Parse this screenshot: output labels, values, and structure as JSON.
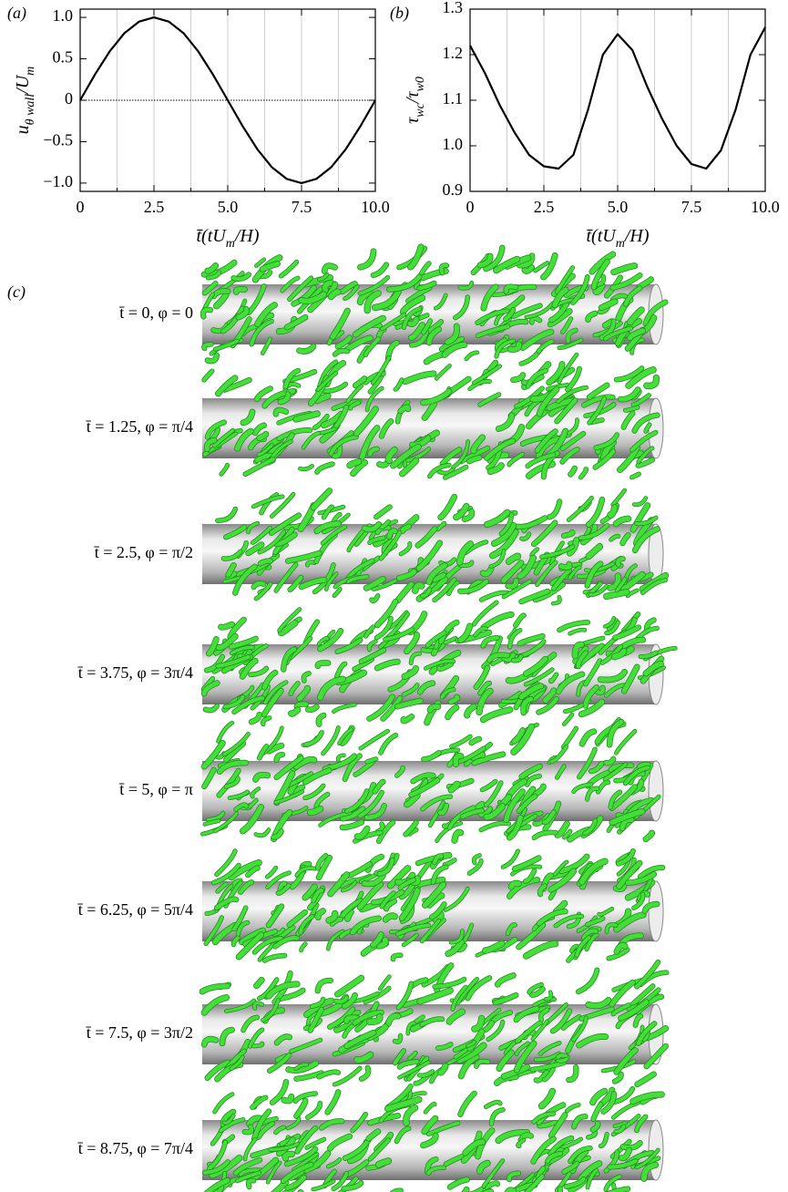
{
  "chart_data": [
    {
      "type": "line",
      "panel_label": "(a)",
      "x": [
        0,
        0.5,
        1,
        1.5,
        2,
        2.5,
        3,
        3.5,
        4,
        4.5,
        5,
        5.5,
        6,
        6.5,
        7,
        7.5,
        8,
        8.5,
        9,
        9.5,
        10
      ],
      "values": [
        0,
        0.31,
        0.59,
        0.81,
        0.95,
        1,
        0.95,
        0.81,
        0.59,
        0.31,
        0,
        -0.31,
        -0.59,
        -0.81,
        -0.95,
        -1,
        -0.95,
        -0.81,
        -0.59,
        -0.31,
        0
      ],
      "color": "#000000",
      "xlim": [
        0,
        10
      ],
      "ylim": [
        -1.1,
        1.1
      ],
      "xticks": [
        0,
        2.5,
        {
          "value": 5,
          "label": "5.0"
        },
        7.5,
        {
          "value": 10,
          "label": "10.0"
        }
      ],
      "xminorticks": [
        1.25,
        3.75,
        6.25,
        8.75
      ],
      "yticks": [
        {
          "value": -1,
          "label": "−1.0"
        },
        {
          "value": -0.5,
          "label": "−0.5"
        },
        0,
        0.5,
        {
          "value": 1,
          "label": "1.0"
        }
      ],
      "grid": "x",
      "zero_line": true,
      "x_label": [
        {
          "text": "t̄(tU"
        },
        {
          "text": "m",
          "sub": true
        },
        {
          "text": "/H)"
        }
      ],
      "y_label": [
        {
          "text": "u"
        },
        {
          "text": "θ wall",
          "sub": true
        },
        {
          "text": "/U"
        },
        {
          "text": "m",
          "sub": true
        }
      ]
    },
    {
      "type": "line",
      "panel_label": "(b)",
      "x": [
        0,
        0.5,
        1,
        1.5,
        2,
        2.5,
        3,
        3.5,
        4,
        4.5,
        5,
        5.5,
        6,
        6.5,
        7,
        7.5,
        8,
        8.5,
        9,
        9.5,
        10
      ],
      "values": [
        1.22,
        1.16,
        1.09,
        1.03,
        0.98,
        0.955,
        0.95,
        0.98,
        1.08,
        1.2,
        1.245,
        1.21,
        1.13,
        1.06,
        1.0,
        0.96,
        0.95,
        0.99,
        1.08,
        1.2,
        1.26
      ],
      "color": "#000000",
      "xlim": [
        0,
        10
      ],
      "ylim": [
        0.9,
        1.3
      ],
      "xticks": [
        0,
        2.5,
        {
          "value": 5,
          "label": "5.0"
        },
        7.5,
        {
          "value": 10,
          "label": "10.0"
        }
      ],
      "xminorticks": [
        1.25,
        3.75,
        6.25,
        8.75
      ],
      "yticks": [
        0.9,
        {
          "value": 1,
          "label": "1.0"
        },
        1.1,
        1.2,
        1.3
      ],
      "grid": "x",
      "zero_line": false,
      "x_label": [
        {
          "text": "t̄(tU"
        },
        {
          "text": "m",
          "sub": true
        },
        {
          "text": "/H)"
        }
      ],
      "y_label": [
        {
          "text": "τ"
        },
        {
          "text": "wc",
          "sub": true
        },
        {
          "text": "/τ"
        },
        {
          "text": "w0",
          "sub": true
        }
      ]
    }
  ],
  "panel_c": {
    "label": "(c)",
    "rows": [
      "t̄ = 0, φ = 0",
      "t̄ = 1.25, φ = π/4",
      "t̄ = 2.5, φ = π/2",
      "t̄ = 3.75, φ = 3π/4",
      "t̄ = 5, φ = π",
      "t̄ = 6.25, φ = 5π/4",
      "t̄ = 7.5, φ = 3π/2",
      "t̄ = 8.75, φ = 7π/4"
    ]
  }
}
